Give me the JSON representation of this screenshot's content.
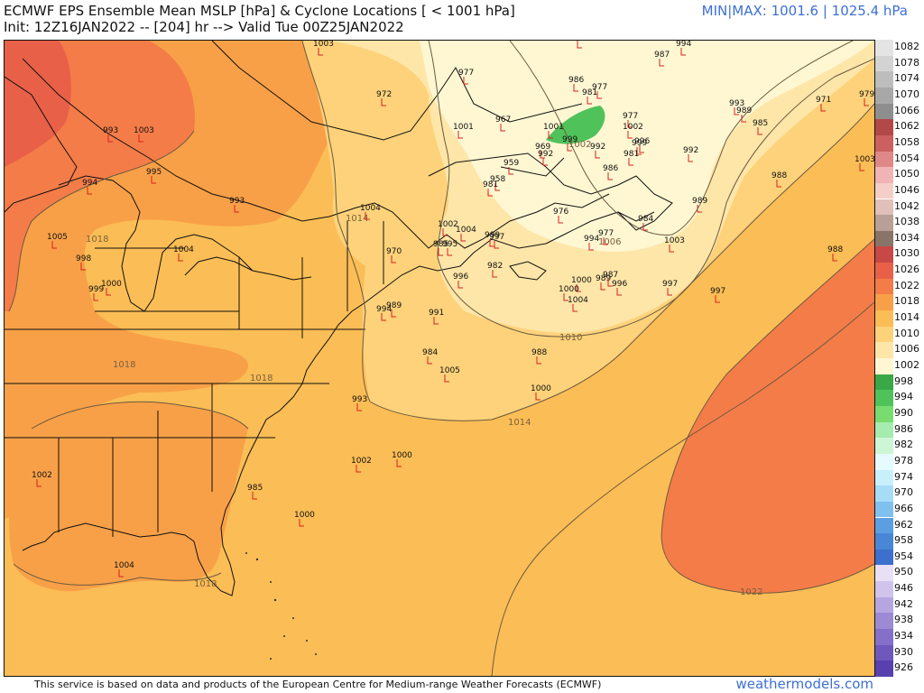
{
  "header": {
    "title_line1": "ECMWF EPS Ensemble Mean MSLP [hPa] & Cyclone Locations [ < 1001 hPa]",
    "title_line2": "Init: 12Z16JAN2022 -- [204] hr --> Valid Tue 00Z25JAN2022",
    "minmax": "MIN|MAX: 1001.6 | 1025.4 hPa"
  },
  "footer": {
    "credit": "This service is based on data and products of the European Centre for Medium-range Weather Forecasts (ECMWF)",
    "brand": "weathermodels.com"
  },
  "colorbar": [
    {
      "label": "1082",
      "color": "#e4e4e4"
    },
    {
      "label": "1078",
      "color": "#d3d3d3"
    },
    {
      "label": "1074",
      "color": "#bdbdbd"
    },
    {
      "label": "1070",
      "color": "#a8a8a8"
    },
    {
      "label": "1066",
      "color": "#8e8e8e"
    },
    {
      "label": "1062",
      "color": "#b24848"
    },
    {
      "label": "1058",
      "color": "#cc6060"
    },
    {
      "label": "1054",
      "color": "#e08888"
    },
    {
      "label": "1050",
      "color": "#f0b4b4"
    },
    {
      "label": "1046",
      "color": "#f4cfc8"
    },
    {
      "label": "1042",
      "color": "#e0c0b8"
    },
    {
      "label": "1038",
      "color": "#b8a098"
    },
    {
      "label": "1034",
      "color": "#8a7468"
    },
    {
      "label": "1030",
      "color": "#c84848"
    },
    {
      "label": "1026",
      "color": "#e86048"
    },
    {
      "label": "1022",
      "color": "#f47c48"
    },
    {
      "label": "1018",
      "color": "#f8a048"
    },
    {
      "label": "1014",
      "color": "#fbbd55"
    },
    {
      "label": "1010",
      "color": "#fdd27a"
    },
    {
      "label": "1006",
      "color": "#fee6a8"
    },
    {
      "label": "1002",
      "color": "#fff7d2"
    },
    {
      "label": "998",
      "color": "#3aa846"
    },
    {
      "label": "994",
      "color": "#50c25a"
    },
    {
      "label": "990",
      "color": "#78dc70"
    },
    {
      "label": "986",
      "color": "#a4ecb0"
    },
    {
      "label": "982",
      "color": "#cdf6d6"
    },
    {
      "label": "978",
      "color": "#e4fbff"
    },
    {
      "label": "974",
      "color": "#c8f0fc"
    },
    {
      "label": "970",
      "color": "#a6dcf6"
    },
    {
      "label": "966",
      "color": "#80c0ee"
    },
    {
      "label": "962",
      "color": "#5c9ee2"
    },
    {
      "label": "958",
      "color": "#4a86d6"
    },
    {
      "label": "954",
      "color": "#3d6fcc"
    },
    {
      "label": "950",
      "color": "#e8e0f4"
    },
    {
      "label": "946",
      "color": "#d0c4ec"
    },
    {
      "label": "942",
      "color": "#b6a6e0"
    },
    {
      "label": "938",
      "color": "#9c8ad4"
    },
    {
      "label": "934",
      "color": "#8470c8"
    },
    {
      "label": "930",
      "color": "#6e58bc"
    },
    {
      "label": "926",
      "color": "#5840ae"
    }
  ],
  "isobar_labels": [
    "1018",
    "1018",
    "1018",
    "1018",
    "1014",
    "1014",
    "1010",
    "1006",
    "1002",
    "1022"
  ],
  "cyclones": [
    {
      "v": "1003"
    },
    {
      "v": "985"
    },
    {
      "v": "994"
    },
    {
      "v": "987"
    },
    {
      "v": "977"
    },
    {
      "v": "986"
    },
    {
      "v": "981"
    },
    {
      "v": "977"
    },
    {
      "v": "972"
    },
    {
      "v": "993"
    },
    {
      "v": "989"
    },
    {
      "v": "985"
    },
    {
      "v": "971"
    },
    {
      "v": "979"
    },
    {
      "v": "1001"
    },
    {
      "v": "967"
    },
    {
      "v": "1001"
    },
    {
      "v": "999"
    },
    {
      "v": "969"
    },
    {
      "v": "992"
    },
    {
      "v": "992"
    },
    {
      "v": "977"
    },
    {
      "v": "1002"
    },
    {
      "v": "999"
    },
    {
      "v": "981"
    },
    {
      "v": "996"
    },
    {
      "v": "986"
    },
    {
      "v": "992"
    },
    {
      "v": "1003"
    },
    {
      "v": "993"
    },
    {
      "v": "1003"
    },
    {
      "v": "995"
    },
    {
      "v": "994"
    },
    {
      "v": "993"
    },
    {
      "v": "959"
    },
    {
      "v": "958"
    },
    {
      "v": "981"
    },
    {
      "v": "988"
    },
    {
      "v": "1004"
    },
    {
      "v": "976"
    },
    {
      "v": "989"
    },
    {
      "v": "984"
    },
    {
      "v": "1004"
    },
    {
      "v": "1002"
    },
    {
      "v": "995"
    },
    {
      "v": "997"
    },
    {
      "v": "998"
    },
    {
      "v": "1005"
    },
    {
      "v": "999"
    },
    {
      "v": "1000"
    },
    {
      "v": "1004"
    },
    {
      "v": "970"
    },
    {
      "v": "985"
    },
    {
      "v": "999"
    },
    {
      "v": "994"
    },
    {
      "v": "977"
    },
    {
      "v": "996"
    },
    {
      "v": "982"
    },
    {
      "v": "1003"
    },
    {
      "v": "988"
    },
    {
      "v": "989"
    },
    {
      "v": "987"
    },
    {
      "v": "996"
    },
    {
      "v": "1000"
    },
    {
      "v": "1000"
    },
    {
      "v": "1004"
    },
    {
      "v": "997"
    },
    {
      "v": "997"
    },
    {
      "v": "994"
    },
    {
      "v": "989"
    },
    {
      "v": "991"
    },
    {
      "v": "984"
    },
    {
      "v": "1005"
    },
    {
      "v": "988"
    },
    {
      "v": "1000"
    },
    {
      "v": "993"
    },
    {
      "v": "1000"
    },
    {
      "v": "1002"
    },
    {
      "v": "1000"
    },
    {
      "v": "985"
    },
    {
      "v": "1002"
    },
    {
      "v": "1004"
    }
  ]
}
